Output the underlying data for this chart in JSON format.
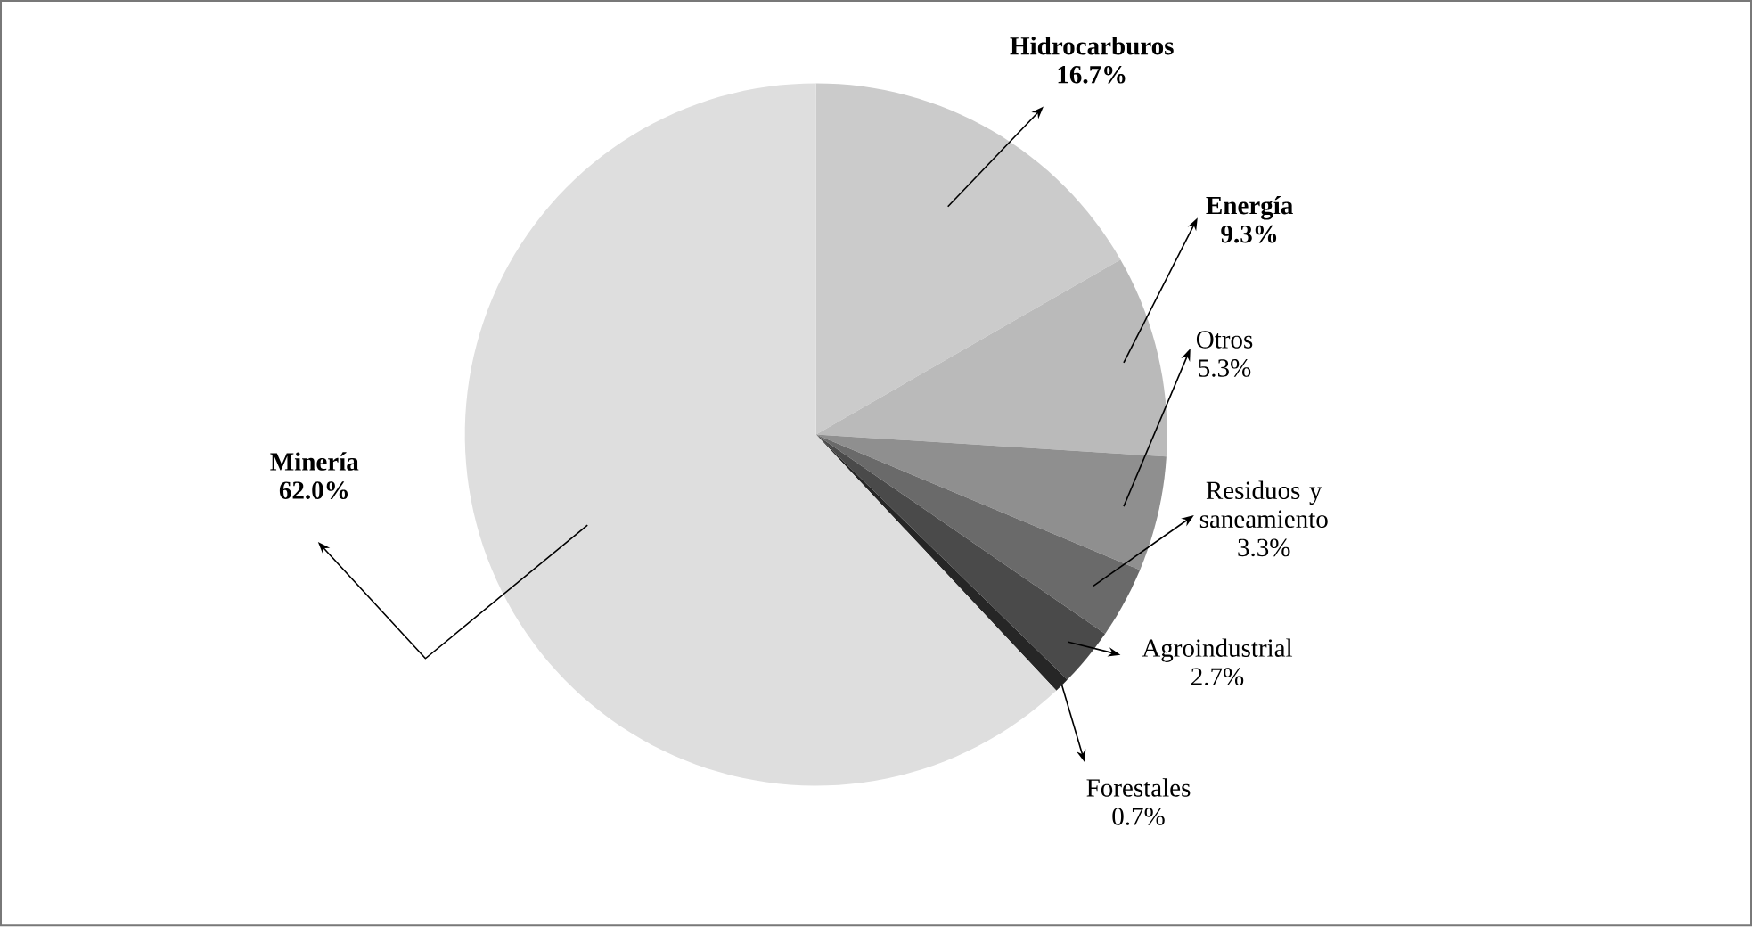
{
  "chart_data": {
    "type": "pie",
    "categories": [
      "**Hidrocarburos**",
      "**Energía**",
      "Otros",
      "Residuos y saneamiento",
      "Agroindustrial",
      "Forestales",
      "**Minería**"
    ],
    "values": [
      16.7,
      9.3,
      5.3,
      3.3,
      2.7,
      0.7,
      62.0
    ],
    "value_labels": [
      "**16.7%**",
      "**9.3%**",
      "5.3%",
      "3.3%",
      "2.7%",
      "0.7%",
      "**62.0%**"
    ],
    "colors": [
      "#cbcbcb",
      "#bababa",
      "#8f8f8f",
      "#6a6a6a",
      "#4a4a4a",
      "#262626",
      "#dedede"
    ]
  }
}
